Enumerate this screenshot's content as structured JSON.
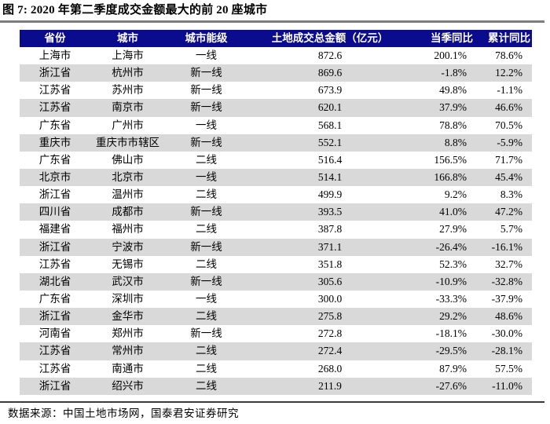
{
  "title": "图 7: 2020 年第二季度成交金额最大的前 20 座城市",
  "colors": {
    "header_bg": "#0B0B8D",
    "header_text": "#FFFFFF",
    "row_alt": "#D9D9D9",
    "title_rule": "#7D7D7D",
    "footer_rule": "#3A3A3A",
    "text": "#000000"
  },
  "table": {
    "columns": [
      "省份",
      "城市",
      "城市能级",
      "土地成交总金额（亿元）",
      "当季同比",
      "累计同比"
    ],
    "rows": [
      {
        "province": "上海市",
        "city": "上海市",
        "tier": "一线",
        "amount": "872.6",
        "qoq_yoy": "200.1%",
        "cum_yoy": "78.6%"
      },
      {
        "province": "浙江省",
        "city": "杭州市",
        "tier": "新一线",
        "amount": "869.6",
        "qoq_yoy": "-1.8%",
        "cum_yoy": "12.2%"
      },
      {
        "province": "江苏省",
        "city": "苏州市",
        "tier": "新一线",
        "amount": "673.9",
        "qoq_yoy": "49.8%",
        "cum_yoy": "-1.1%"
      },
      {
        "province": "江苏省",
        "city": "南京市",
        "tier": "新一线",
        "amount": "620.1",
        "qoq_yoy": "37.9%",
        "cum_yoy": "46.6%"
      },
      {
        "province": "广东省",
        "city": "广州市",
        "tier": "一线",
        "amount": "568.1",
        "qoq_yoy": "78.8%",
        "cum_yoy": "70.5%"
      },
      {
        "province": "重庆市",
        "city": "重庆市市辖区",
        "tier": "新一线",
        "amount": "552.1",
        "qoq_yoy": "8.8%",
        "cum_yoy": "-5.9%"
      },
      {
        "province": "广东省",
        "city": "佛山市",
        "tier": "二线",
        "amount": "516.4",
        "qoq_yoy": "156.5%",
        "cum_yoy": "71.7%"
      },
      {
        "province": "北京市",
        "city": "北京市",
        "tier": "一线",
        "amount": "514.1",
        "qoq_yoy": "166.8%",
        "cum_yoy": "45.4%"
      },
      {
        "province": "浙江省",
        "city": "温州市",
        "tier": "二线",
        "amount": "499.9",
        "qoq_yoy": "9.2%",
        "cum_yoy": "8.3%"
      },
      {
        "province": "四川省",
        "city": "成都市",
        "tier": "新一线",
        "amount": "393.5",
        "qoq_yoy": "41.0%",
        "cum_yoy": "47.2%"
      },
      {
        "province": "福建省",
        "city": "福州市",
        "tier": "二线",
        "amount": "387.8",
        "qoq_yoy": "27.9%",
        "cum_yoy": "5.7%"
      },
      {
        "province": "浙江省",
        "city": "宁波市",
        "tier": "新一线",
        "amount": "371.1",
        "qoq_yoy": "-26.4%",
        "cum_yoy": "-16.1%"
      },
      {
        "province": "江苏省",
        "city": "无锡市",
        "tier": "二线",
        "amount": "351.8",
        "qoq_yoy": "52.3%",
        "cum_yoy": "32.7%"
      },
      {
        "province": "湖北省",
        "city": "武汉市",
        "tier": "新一线",
        "amount": "305.6",
        "qoq_yoy": "-10.9%",
        "cum_yoy": "-32.8%"
      },
      {
        "province": "广东省",
        "city": "深圳市",
        "tier": "一线",
        "amount": "300.0",
        "qoq_yoy": "-33.3%",
        "cum_yoy": "-37.9%"
      },
      {
        "province": "浙江省",
        "city": "金华市",
        "tier": "二线",
        "amount": "275.8",
        "qoq_yoy": "29.2%",
        "cum_yoy": "48.6%"
      },
      {
        "province": "河南省",
        "city": "郑州市",
        "tier": "新一线",
        "amount": "272.8",
        "qoq_yoy": "-18.1%",
        "cum_yoy": "-30.0%"
      },
      {
        "province": "江苏省",
        "city": "常州市",
        "tier": "二线",
        "amount": "272.4",
        "qoq_yoy": "-29.5%",
        "cum_yoy": "-28.1%"
      },
      {
        "province": "江苏省",
        "city": "南通市",
        "tier": "二线",
        "amount": "268.0",
        "qoq_yoy": "87.9%",
        "cum_yoy": "57.5%"
      },
      {
        "province": "浙江省",
        "city": "绍兴市",
        "tier": "二线",
        "amount": "211.9",
        "qoq_yoy": "-27.6%",
        "cum_yoy": "-11.0%"
      }
    ]
  },
  "footer": {
    "source": "数据来源：中国土地市场网，国泰君安证券研究"
  }
}
